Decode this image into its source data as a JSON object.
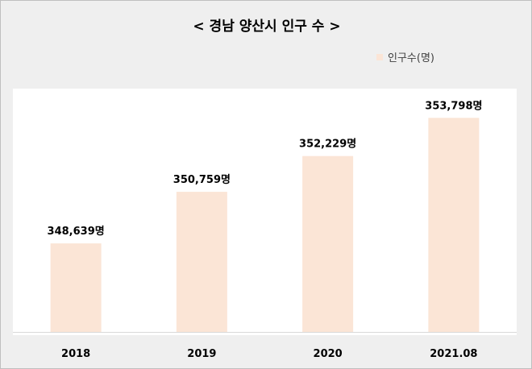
{
  "title": "< 경남 양산시 인구 수 >",
  "legend": {
    "label": "인구수(명)"
  },
  "colors": {
    "bar": "#fbe5d6",
    "axis": "#d9d9d9",
    "background": "#efefef"
  },
  "chart_data": {
    "type": "bar",
    "title": "< 경남 양산시 인구 수 >",
    "categories": [
      "2018",
      "2019",
      "2020",
      "2021.08"
    ],
    "series": [
      {
        "name": "인구수(명)",
        "values": [
          348639,
          350759,
          352229,
          353798
        ],
        "labels": [
          "348,639명",
          "350,759명",
          "352,229명",
          "353,798명"
        ]
      }
    ],
    "xlabel": "",
    "ylabel": "",
    "ylim": [
      345000,
      355000
    ],
    "grid": false,
    "legend_position": "top-right"
  }
}
